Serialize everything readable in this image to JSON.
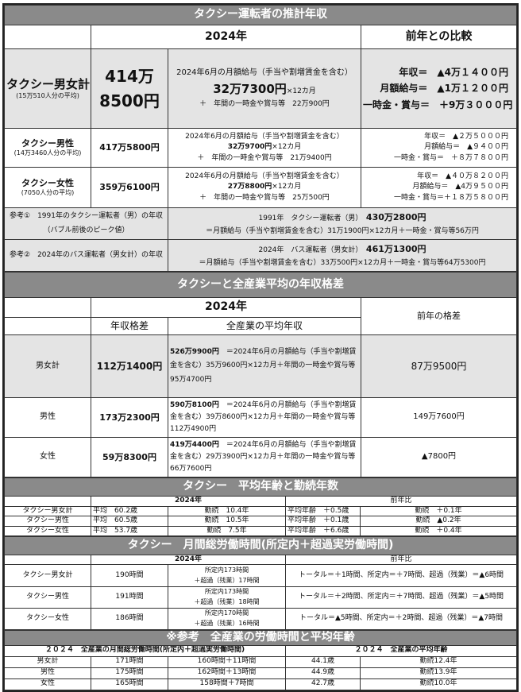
{
  "s1": {
    "title": "タクシー運転者の推計年収",
    "col_2024": "2024年",
    "col_prev": "前年との比較",
    "rows": [
      {
        "name": "タクシー男女計",
        "sub": "(15万510人分の平均)",
        "annual_l1": "414万",
        "annual_l2": "8500円",
        "d1": "2024年6月の月額給与（手当や割増賃金を含む）",
        "d2_bold": "32万7300円",
        "d2_tail": "×12カ月",
        "d3": "＋　年間の一時金や賞与等　22万900円",
        "p1": "年収＝　▲4万１４００円",
        "p2": "月額給与＝　▲1万１２００円",
        "p3": "一時金・賞与＝　＋9万３０００円"
      },
      {
        "name": "タクシー男性",
        "sub": "(14万3460人分の平均)",
        "annual": "417万5800円",
        "d1": "2024年6月の月額給与（手当や割増賃金を含む）",
        "d2_bold": "32万9700円",
        "d2_tail": "×12カ月",
        "d3": "＋　年間の一時金や賞与等　21万9400円",
        "p1": "年収＝　▲２万５０００円",
        "p2": "月額給与＝　▲９４００円",
        "p3": "一時金・賞与＝　＋８万７８００円"
      },
      {
        "name": "タクシー女性",
        "sub": "(7050人分の平均)",
        "annual": "359万6100円",
        "d1": "2024年6月の月額給与（手当や割増賃金を含む）",
        "d2_bold": "27万8800円",
        "d2_tail": "×12カ月",
        "d3": "＋　年間の一時金や賞与等　25万500円",
        "p1": "年収＝　▲４０万８２００円",
        "p2": "月額給与＝　▲4万９５００円",
        "p3": "一時金・賞与＝＋１８万５８００円"
      }
    ],
    "refs": [
      {
        "label": "参考①　1991年のタクシー運転者（男）の年収（バブル前後のピーク値）",
        "l1": "1991年　タクシー運転者（男）",
        "l1_bold": "430万2800円",
        "l2": "＝月額給与（手当や割増賃金を含む）31万1900円×12カ月＋一時金・賞与等56万円"
      },
      {
        "label": "参考②　2024年のバス運転者（男女計）の年収",
        "l1": "2024年　バス運転者（男女計）",
        "l1_bold": "461万1300円",
        "l2": "＝月額給与（手当や割増賃金を含む）33万500円×12カ月＋一時金・賞与等64万5300円"
      }
    ]
  },
  "s2": {
    "title": "タクシーと全産業平均の年収格差",
    "col_2024": "2024年",
    "col_gap": "年収格差",
    "col_avg": "全産業の平均年収",
    "col_prev": "前年の格差",
    "rows": [
      {
        "name": "男女計",
        "gap": "112万1400円",
        "avg_bold": "526万9900円",
        "avg_text": "　＝2024年6月の月額給与（手当や割増賃金を含む）35万9600円×12カ月＋年間の一時金や賞与等　95万4700円",
        "prev": "87万9500円"
      },
      {
        "name": "男性",
        "gap": "173万2300円",
        "avg_bold": "590万8100円",
        "avg_text": "　＝2024年6月の月額給与（手当や割増賃金を含む）39万8600円×12カ月＋年間の一時金や賞与等　112万4900円",
        "prev": "149万7600円"
      },
      {
        "name": "女性",
        "gap": "59万8300円",
        "avg_bold": "419万4400円",
        "avg_text": "　＝2024年6月の月額給与（手当や割増賃金を含む）29万3900円×12カ月＋年間の一時金や賞与等　66万7600円",
        "prev": "▲7800円"
      }
    ]
  },
  "s3": {
    "title": "タクシー　平均年齢と勤続年数",
    "col_2024": "2024年",
    "col_prev": "前年比",
    "rows": [
      {
        "name": "タクシー男女計",
        "age": "平均　60.2歳",
        "tenure": "勤続　10.4年",
        "age_diff": "平均年齢　＋0.5歳",
        "tenure_diff": "勤続　＋0.1年"
      },
      {
        "name": "タクシー男性",
        "age": "平均　60.5歳",
        "tenure": "勤続　10.5年",
        "age_diff": "平均年齢　＋0.1歳",
        "tenure_diff": "勤続　▲0.2年"
      },
      {
        "name": "タクシー女性",
        "age": "平均　53.7歳",
        "tenure": "勤続　7.5年",
        "age_diff": "平均年齢　＋6.6歳",
        "tenure_diff": "勤続　＋0.4年"
      }
    ]
  },
  "s4": {
    "title": "タクシー　月間総労働時間(所定内＋超過実労働時間)",
    "col_2024": "2024年",
    "col_prev": "前年比",
    "rows": [
      {
        "name": "タクシー男女計",
        "total": "190時間",
        "b1": "所定内173時間",
        "b2": "＋超過（残業）17時間",
        "diff": "トータル＝＋1時間、所定内＝＋7時間、超過（残業）＝▲6時間"
      },
      {
        "name": "タクシー男性",
        "total": "191時間",
        "b1": "所定内173時間",
        "b2": "＋超過（残業）18時間",
        "diff": "トータル＝＋2時間、所定内＝＋7時間、超過（残業）＝▲5時間"
      },
      {
        "name": "タクシー女性",
        "total": "186時間",
        "b1": "所定内170時間",
        "b2": "＋超過（残業）16時間",
        "diff": "トータル＝▲5時間、所定内＝＋2時間、超過（残業）＝▲7時間"
      }
    ]
  },
  "s5": {
    "title": "※参考　全産業の労働時間と平均年齢",
    "col_hours": "２０２４　全産業の月間総労働時間(所定内＋超過実労働時間)",
    "col_age": "２０２４　全産業の平均年齢",
    "rows": [
      {
        "name": "男女計",
        "total": "171時間",
        "breakdown": "160時間＋11時間",
        "age": "44.1歳",
        "tenure": "勤続12.4年"
      },
      {
        "name": "男性",
        "total": "175時間",
        "breakdown": "162時間＋13時間",
        "age": "44.9歳",
        "tenure": "勤続13.9年"
      },
      {
        "name": "女性",
        "total": "165時間",
        "breakdown": "158時間＋7時間",
        "age": "42.7歳",
        "tenure": "勤続10.0年"
      }
    ]
  }
}
